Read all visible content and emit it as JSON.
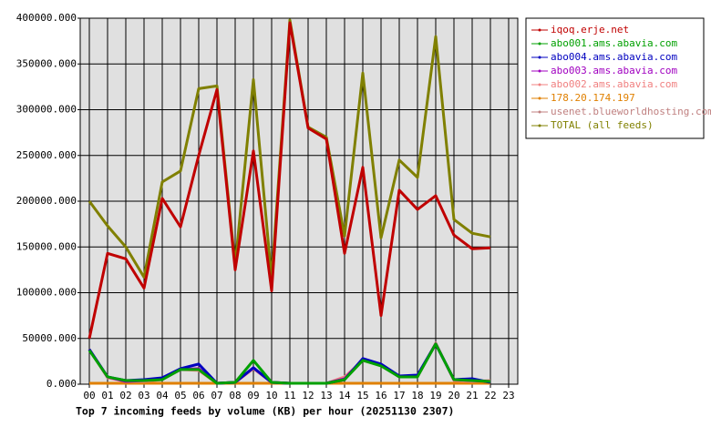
{
  "chart_data": {
    "type": "line",
    "title": "Top 7 incoming feeds by volume (KB) per hour (20251130 2307)",
    "categories": [
      "00",
      "01",
      "02",
      "03",
      "04",
      "05",
      "06",
      "07",
      "08",
      "09",
      "10",
      "11",
      "12",
      "13",
      "14",
      "15",
      "16",
      "17",
      "18",
      "19",
      "20",
      "21",
      "22",
      "23"
    ],
    "ylim": [
      0,
      400000
    ],
    "yticks": [
      {
        "value": 0,
        "label": "0.000"
      },
      {
        "value": 50000,
        "label": "50000.000"
      },
      {
        "value": 100000,
        "label": "100000.000"
      },
      {
        "value": 150000,
        "label": "150000.000"
      },
      {
        "value": 200000,
        "label": "200000.000"
      },
      {
        "value": 250000,
        "label": "250000.000"
      },
      {
        "value": 300000,
        "label": "300000.000"
      },
      {
        "value": 350000,
        "label": "350000.000"
      },
      {
        "value": 400000,
        "label": "400000.000"
      }
    ],
    "grid": true,
    "legend": "right",
    "series": [
      {
        "name": "iqoq.erje.net",
        "color": "#c00000",
        "values": [
          50000,
          143000,
          137000,
          105000,
          203000,
          172000,
          250000,
          322000,
          125000,
          255000,
          102000,
          395000,
          280000,
          268000,
          143000,
          237000,
          75000,
          212000,
          191000,
          206000,
          163000,
          148000,
          149000,
          null
        ]
      },
      {
        "name": "abo001.ams.abavia.com",
        "color": "#00a000",
        "values": [
          37000,
          8000,
          4000,
          4000,
          5000,
          16000,
          16000,
          1000,
          2000,
          26000,
          2000,
          1000,
          1000,
          1000,
          5000,
          26000,
          20000,
          8000,
          8000,
          44000,
          5000,
          4000,
          3000,
          null
        ]
      },
      {
        "name": "abo004.ams.abavia.com",
        "color": "#0000c0",
        "values": [
          38000,
          8000,
          4000,
          5000,
          7000,
          17000,
          22000,
          1000,
          2000,
          18000,
          2000,
          1000,
          1000,
          1000,
          5000,
          28000,
          22000,
          9000,
          10000,
          44000,
          5000,
          6000,
          2000,
          null
        ]
      },
      {
        "name": "abo003.ams.abavia.com",
        "color": "#a000c0",
        "values": [
          38000,
          8000,
          3000,
          4000,
          6000,
          16000,
          17000,
          1000,
          2000,
          18000,
          2000,
          1000,
          1000,
          1000,
          6000,
          27000,
          21000,
          8000,
          9000,
          44000,
          5000,
          4000,
          3000,
          null
        ]
      },
      {
        "name": "abo002.ams.abavia.com",
        "color": "#f08080",
        "values": [
          38000,
          7000,
          3000,
          3000,
          5000,
          16000,
          15000,
          1000,
          2000,
          17000,
          2000,
          1000,
          1000,
          1000,
          8000,
          26000,
          21000,
          8000,
          8000,
          45000,
          4000,
          3000,
          4000,
          null
        ]
      },
      {
        "name": "178.20.174.197",
        "color": "#e08000",
        "values": [
          1000,
          1000,
          1000,
          1000,
          1000,
          1000,
          1000,
          1000,
          1000,
          1000,
          1000,
          1000,
          1000,
          1000,
          1000,
          1000,
          1000,
          1000,
          1000,
          1000,
          1000,
          1000,
          1000,
          null
        ]
      },
      {
        "name": "usenet.blueworldhosting.com",
        "color": "#c08080",
        "values": [
          1000,
          1000,
          1000,
          1000,
          1000,
          1000,
          1000,
          1000,
          1000,
          1000,
          1000,
          1000,
          1000,
          1000,
          1000,
          1000,
          1000,
          1000,
          1000,
          1000,
          1000,
          1000,
          1000,
          null
        ]
      },
      {
        "name": "TOTAL (all feeds)",
        "color": "#808000",
        "values": [
          200000,
          173000,
          150000,
          117000,
          221000,
          233000,
          323000,
          326000,
          130000,
          333000,
          115000,
          398000,
          281000,
          270000,
          162000,
          340000,
          160000,
          245000,
          226000,
          380000,
          180000,
          165000,
          161000,
          null
        ]
      }
    ]
  }
}
